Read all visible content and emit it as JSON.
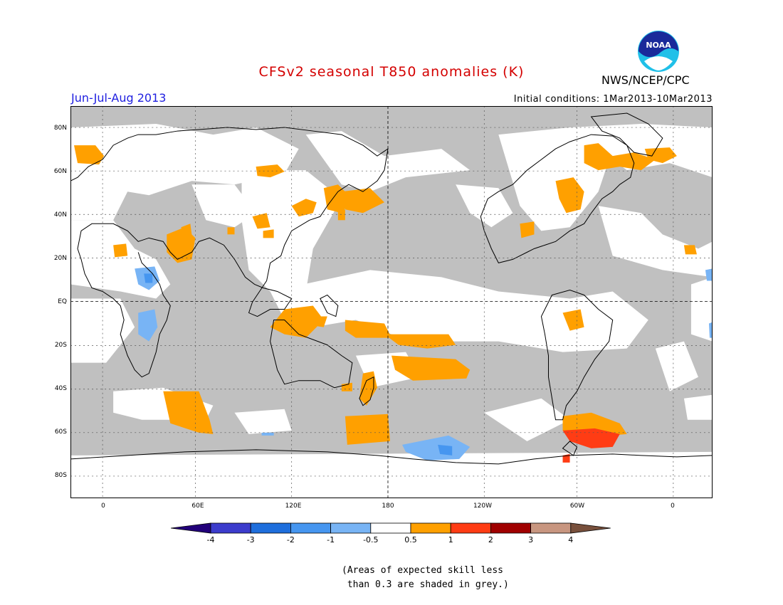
{
  "header": {
    "title": "CFSv2 seasonal T850 anomalies (K)",
    "season": "Jun-Jul-Aug 2013",
    "initial_conditions": "Initial conditions: 1Mar2013-10Mar2013",
    "agency": "NWS/NCEP/CPC",
    "logo_text": "NOAA"
  },
  "axes": {
    "lat_labels": [
      "80N",
      "60N",
      "40N",
      "20N",
      "EQ",
      "20S",
      "40S",
      "60S",
      "80S"
    ],
    "lon_labels": [
      "0",
      "60E",
      "120E",
      "180",
      "120W",
      "60W",
      "0"
    ]
  },
  "colorbar": {
    "labels": [
      "-4",
      "-3",
      "-2",
      "-1",
      "-0.5",
      "0.5",
      "1",
      "2",
      "3",
      "4"
    ],
    "colors": [
      "#22007a",
      "#3c3ccc",
      "#1e6edc",
      "#4696f0",
      "#78b4f5",
      "#ffffff",
      "#ffa000",
      "#ff3c14",
      "#a00000",
      "#c89680",
      "#78503c"
    ]
  },
  "note": "(Areas of expected skill less\n than 0.3 are shaded in grey.)",
  "colors": {
    "grey": "#c0c0c0",
    "orange": "#ffa000",
    "red": "#ff3c14",
    "light_blue": "#78b4f5",
    "blue": "#4696f0",
    "title_red": "#d40000",
    "season_blue": "#2020e0"
  }
}
